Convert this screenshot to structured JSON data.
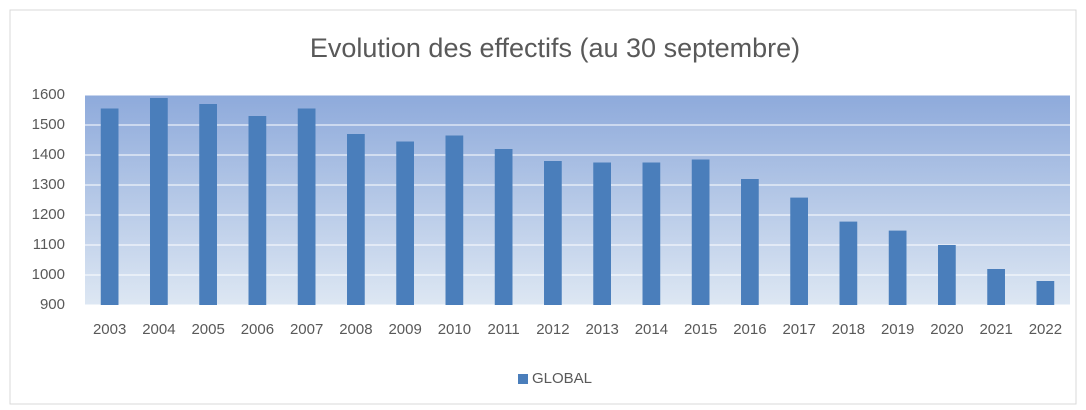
{
  "chart_data": {
    "type": "bar",
    "title": "Evolution des effectifs (au 30 septembre)",
    "categories": [
      "2003",
      "2004",
      "2005",
      "2006",
      "2007",
      "2008",
      "2009",
      "2010",
      "2011",
      "2012",
      "2013",
      "2014",
      "2015",
      "2016",
      "2017",
      "2018",
      "2019",
      "2020",
      "2021",
      "2022"
    ],
    "series": [
      {
        "name": "GLOBAL",
        "color": "#4a7ebb",
        "values": [
          1555,
          1590,
          1570,
          1530,
          1555,
          1470,
          1445,
          1465,
          1420,
          1380,
          1375,
          1375,
          1385,
          1320,
          1258,
          1178,
          1148,
          1100,
          1020,
          980
        ]
      }
    ],
    "ylim": [
      900,
      1600
    ],
    "yticks": [
      900,
      1000,
      1100,
      1200,
      1300,
      1400,
      1500,
      1600
    ],
    "grid": true,
    "legend": "bottom"
  }
}
